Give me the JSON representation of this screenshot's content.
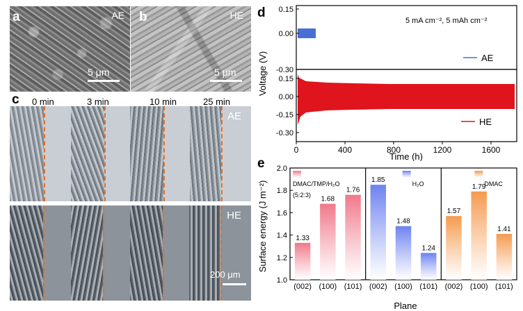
{
  "panels": {
    "a": "a",
    "b": "b",
    "c": "c",
    "d": "d",
    "e": "e"
  },
  "sem": {
    "a_tag": "AE",
    "b_tag": "HE",
    "scale_a": "5 μm",
    "scale_b": "5 μm"
  },
  "microscopy": {
    "times": [
      "0 min",
      "3 min",
      "10 min",
      "25 min"
    ],
    "top_tag": "AE",
    "bottom_tag": "HE",
    "scale": "200 μm"
  },
  "voltage_chart": {
    "ylabel": "Voltage (V)",
    "xlabel": "Time (h)",
    "condition": "5 mA cm⁻², 5 mAh cm⁻²",
    "top_legend": "AE",
    "bottom_legend": "HE",
    "top_yticks": [
      "-0.30",
      "0.00",
      "0.15"
    ],
    "bottom_yticks": [
      "-0.30",
      "-0.15",
      "0.00",
      "0.15"
    ],
    "xticks": [
      "0",
      "400",
      "800",
      "1200",
      "1600"
    ],
    "colors": {
      "ae": "#4a6fd4",
      "he": "#e0141c"
    }
  },
  "chart_data": {
    "type": "bar",
    "ylabel": "Surface energy (J m⁻²)",
    "xlabel": "Plane",
    "ylim": [
      1.0,
      2.0
    ],
    "yticks": [
      "1.0",
      "1.2",
      "1.4",
      "1.6",
      "1.8",
      "2.0"
    ],
    "groups": [
      {
        "name": "DMAC/TMP/H₂O",
        "sub": "(5:2:3)",
        "color": "#f0788a",
        "categories": [
          "(002)",
          "(100)",
          "(101)"
        ],
        "values": [
          1.33,
          1.68,
          1.76
        ],
        "labels": [
          "1.33",
          "1.68",
          "1.76"
        ]
      },
      {
        "name": "H₂O",
        "sub": "",
        "color": "#6c82f0",
        "categories": [
          "(002)",
          "(100)",
          "(101)"
        ],
        "values": [
          1.85,
          1.48,
          1.24
        ],
        "labels": [
          "1.85",
          "1.48",
          "1.24"
        ]
      },
      {
        "name": "DMAC",
        "sub": "",
        "color": "#f59a4e",
        "categories": [
          "(002)",
          "(100)",
          "(101)"
        ],
        "values": [
          1.57,
          1.79,
          1.41
        ],
        "labels": [
          "1.57",
          "1.79",
          "1.41"
        ]
      }
    ]
  }
}
